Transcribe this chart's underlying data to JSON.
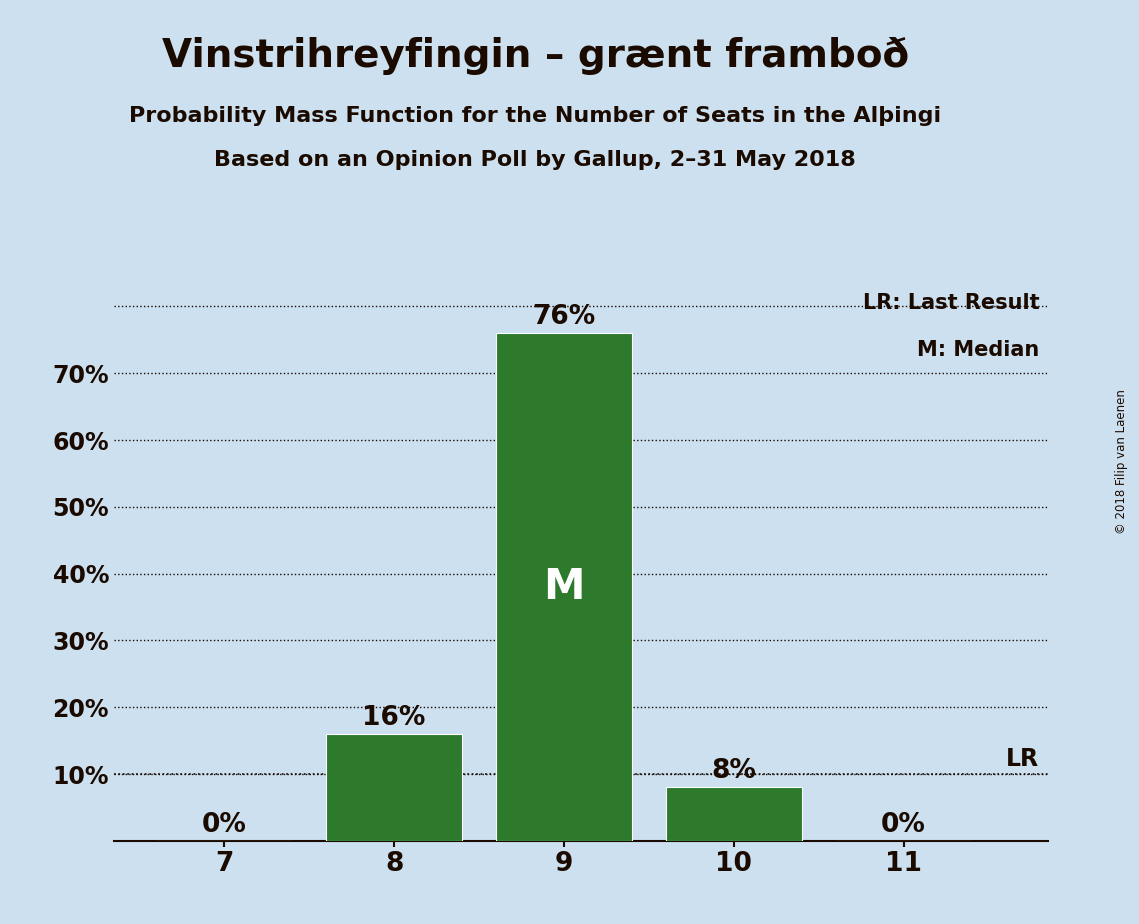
{
  "title": "Vinstrihreyfingin – grænt framboð",
  "subtitle1": "Probability Mass Function for the Number of Seats in the Alþingi",
  "subtitle2": "Based on an Opinion Poll by Gallup, 2–31 May 2018",
  "copyright": "© 2018 Filip van Laenen",
  "categories": [
    7,
    8,
    9,
    10,
    11
  ],
  "values": [
    0,
    16,
    76,
    8,
    0
  ],
  "bar_color": "#2d7a2d",
  "background_color": "#cce0f0",
  "text_color": "#1a0a00",
  "ytick_labels": [
    "",
    "10%",
    "20%",
    "30%",
    "40%",
    "50%",
    "60%",
    "70%",
    ""
  ],
  "ytick_values": [
    0,
    10,
    20,
    30,
    40,
    50,
    60,
    70,
    80
  ],
  "ylim_max": 83,
  "median_seat": 9,
  "last_result_pct": 10,
  "legend_lr": "LR: Last Result",
  "legend_m": "M: Median",
  "bar_width": 0.8,
  "xlim_min": 6.35,
  "xlim_max": 11.85
}
